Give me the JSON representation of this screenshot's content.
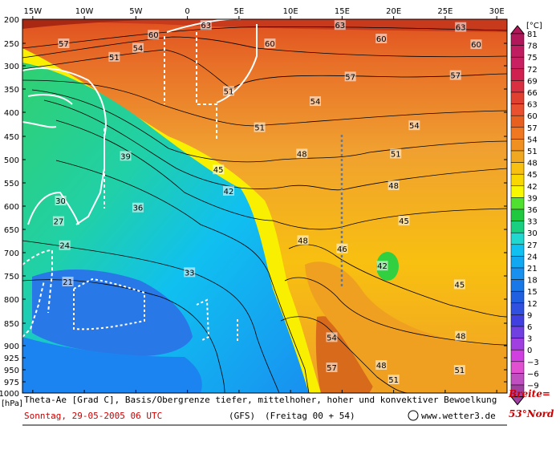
{
  "chart_data": {
    "type": "heatmap",
    "title": "Theta-Ae [Grad C], Basis/Obergrenze tiefer, mittelhoher, hoher und konvektiver Bewoelkung",
    "x_tick_labels": [
      "15W",
      "10W",
      "5W",
      "0",
      "5E",
      "10E",
      "15E",
      "20E",
      "25E",
      "30E"
    ],
    "x_values": [
      -15,
      -10,
      -5,
      0,
      5,
      10,
      15,
      20,
      25,
      30
    ],
    "xlim": [
      -16,
      31
    ],
    "y_unit_label": "[hPa]",
    "y_tick_labels": [
      "200",
      "250",
      "300",
      "350",
      "400",
      "450",
      "500",
      "550",
      "600",
      "650",
      "700",
      "750",
      "800",
      "850",
      "900",
      "925",
      "950",
      "975",
      "1000"
    ],
    "y_values": [
      200,
      250,
      300,
      350,
      400,
      450,
      500,
      550,
      600,
      650,
      700,
      750,
      800,
      850,
      900,
      925,
      950,
      975,
      1000
    ],
    "ylim": [
      200,
      1000
    ],
    "colorbar": {
      "unit": "[°C]",
      "labels": [
        "81",
        "78",
        "75",
        "72",
        "69",
        "66",
        "63",
        "60",
        "57",
        "54",
        "51",
        "48",
        "45",
        "42",
        "39",
        "36",
        "33",
        "30",
        "27",
        "24",
        "21",
        "18",
        "15",
        "12",
        "9",
        "6",
        "3",
        "0",
        "−3",
        "−6",
        "−9"
      ],
      "colors": [
        "#b0185a",
        "#c01c60",
        "#c82060",
        "#d02050",
        "#d83040",
        "#e04030",
        "#e85030",
        "#e86020",
        "#f07820",
        "#f09020",
        "#f0a820",
        "#f8c010",
        "#f8d800",
        "#f8f800",
        "#50e030",
        "#20c840",
        "#18d080",
        "#20d8d0",
        "#10c0f0",
        "#10a8f0",
        "#1890f0",
        "#1878e8",
        "#2060e0",
        "#3050e0",
        "#4040e0",
        "#7040e0",
        "#a040e0",
        "#d040e0",
        "#e050d0",
        "#c050c0",
        "#a040a0"
      ]
    },
    "contour_labels": [
      {
        "value": "63",
        "x": 1.8,
        "y": 212
      },
      {
        "value": "63",
        "x": 14.8,
        "y": 212
      },
      {
        "value": "63",
        "x": 26.5,
        "y": 216
      },
      {
        "value": "60",
        "x": -3.3,
        "y": 232
      },
      {
        "value": "60",
        "x": 8.0,
        "y": 250
      },
      {
        "value": "60",
        "x": 18.8,
        "y": 240
      },
      {
        "value": "60",
        "x": 28.0,
        "y": 252
      },
      {
        "value": "57",
        "x": -12.0,
        "y": 250
      },
      {
        "value": "57",
        "x": 15.8,
        "y": 323
      },
      {
        "value": "57",
        "x": 26.0,
        "y": 320
      },
      {
        "value": "54",
        "x": -4.8,
        "y": 260
      },
      {
        "value": "51",
        "x": -7.1,
        "y": 280
      },
      {
        "value": "51",
        "x": 4.0,
        "y": 354
      },
      {
        "value": "54",
        "x": 12.4,
        "y": 376
      },
      {
        "value": "54",
        "x": 22.0,
        "y": 427
      },
      {
        "value": "51",
        "x": 7.0,
        "y": 431
      },
      {
        "value": "48",
        "x": 11.1,
        "y": 487
      },
      {
        "value": "51",
        "x": 20.2,
        "y": 487
      },
      {
        "value": "39",
        "x": -6.0,
        "y": 492
      },
      {
        "value": "45",
        "x": 3.0,
        "y": 521
      },
      {
        "value": "48",
        "x": 20.0,
        "y": 555
      },
      {
        "value": "42",
        "x": 4.0,
        "y": 567
      },
      {
        "value": "45",
        "x": 21.0,
        "y": 631
      },
      {
        "value": "30",
        "x": -12.3,
        "y": 588
      },
      {
        "value": "36",
        "x": -4.8,
        "y": 603
      },
      {
        "value": "27",
        "x": -12.5,
        "y": 632
      },
      {
        "value": "48",
        "x": 11.2,
        "y": 673
      },
      {
        "value": "46",
        "x": 15.0,
        "y": 691
      },
      {
        "value": "24",
        "x": -11.9,
        "y": 684
      },
      {
        "value": "42",
        "x": 18.9,
        "y": 728
      },
      {
        "value": "33",
        "x": 0.2,
        "y": 742
      },
      {
        "value": "45",
        "x": 26.4,
        "y": 768
      },
      {
        "value": "21",
        "x": -11.6,
        "y": 762
      },
      {
        "value": "48",
        "x": 26.5,
        "y": 878
      },
      {
        "value": "54",
        "x": 14.0,
        "y": 881
      },
      {
        "value": "57",
        "x": 14.0,
        "y": 945
      },
      {
        "value": "48",
        "x": 18.8,
        "y": 940
      },
      {
        "value": "51",
        "x": 20.0,
        "y": 970
      },
      {
        "value": "51",
        "x": 26.4,
        "y": 950
      },
      {
        "value": "21",
        "x": -11.6,
        "y": 1013
      },
      {
        "value": "21",
        "x": -2.3,
        "y": 1037
      },
      {
        "value": "21",
        "x": -8.0,
        "y": 1081
      },
      {
        "value": "48",
        "x": 22.1,
        "y": 1090
      },
      {
        "value": "54",
        "x": 30.5,
        "y": 1108
      },
      {
        "value": "57",
        "x": 25.9,
        "y": 1112
      }
    ]
  },
  "footer": {
    "line1": "Theta-Ae [Grad C], Basis/Obergrenze tiefer, mittelhoher, hoher und konvektiver Bewoelkung",
    "date": "Sonntag, 29-05-2005  06 UTC",
    "model": "(GFS)",
    "run": "(Freitag 00 + 54)",
    "copyright": "©",
    "site": "www.wetter3.de"
  },
  "side_note": {
    "line1": "Breite=",
    "line2": "53°Nord"
  },
  "colors": {
    "ridge": "#f8f800",
    "contour": "#000000",
    "cloud_outline": "#ffffff",
    "convective_line": "#777777",
    "date_text": "#cc0000"
  }
}
